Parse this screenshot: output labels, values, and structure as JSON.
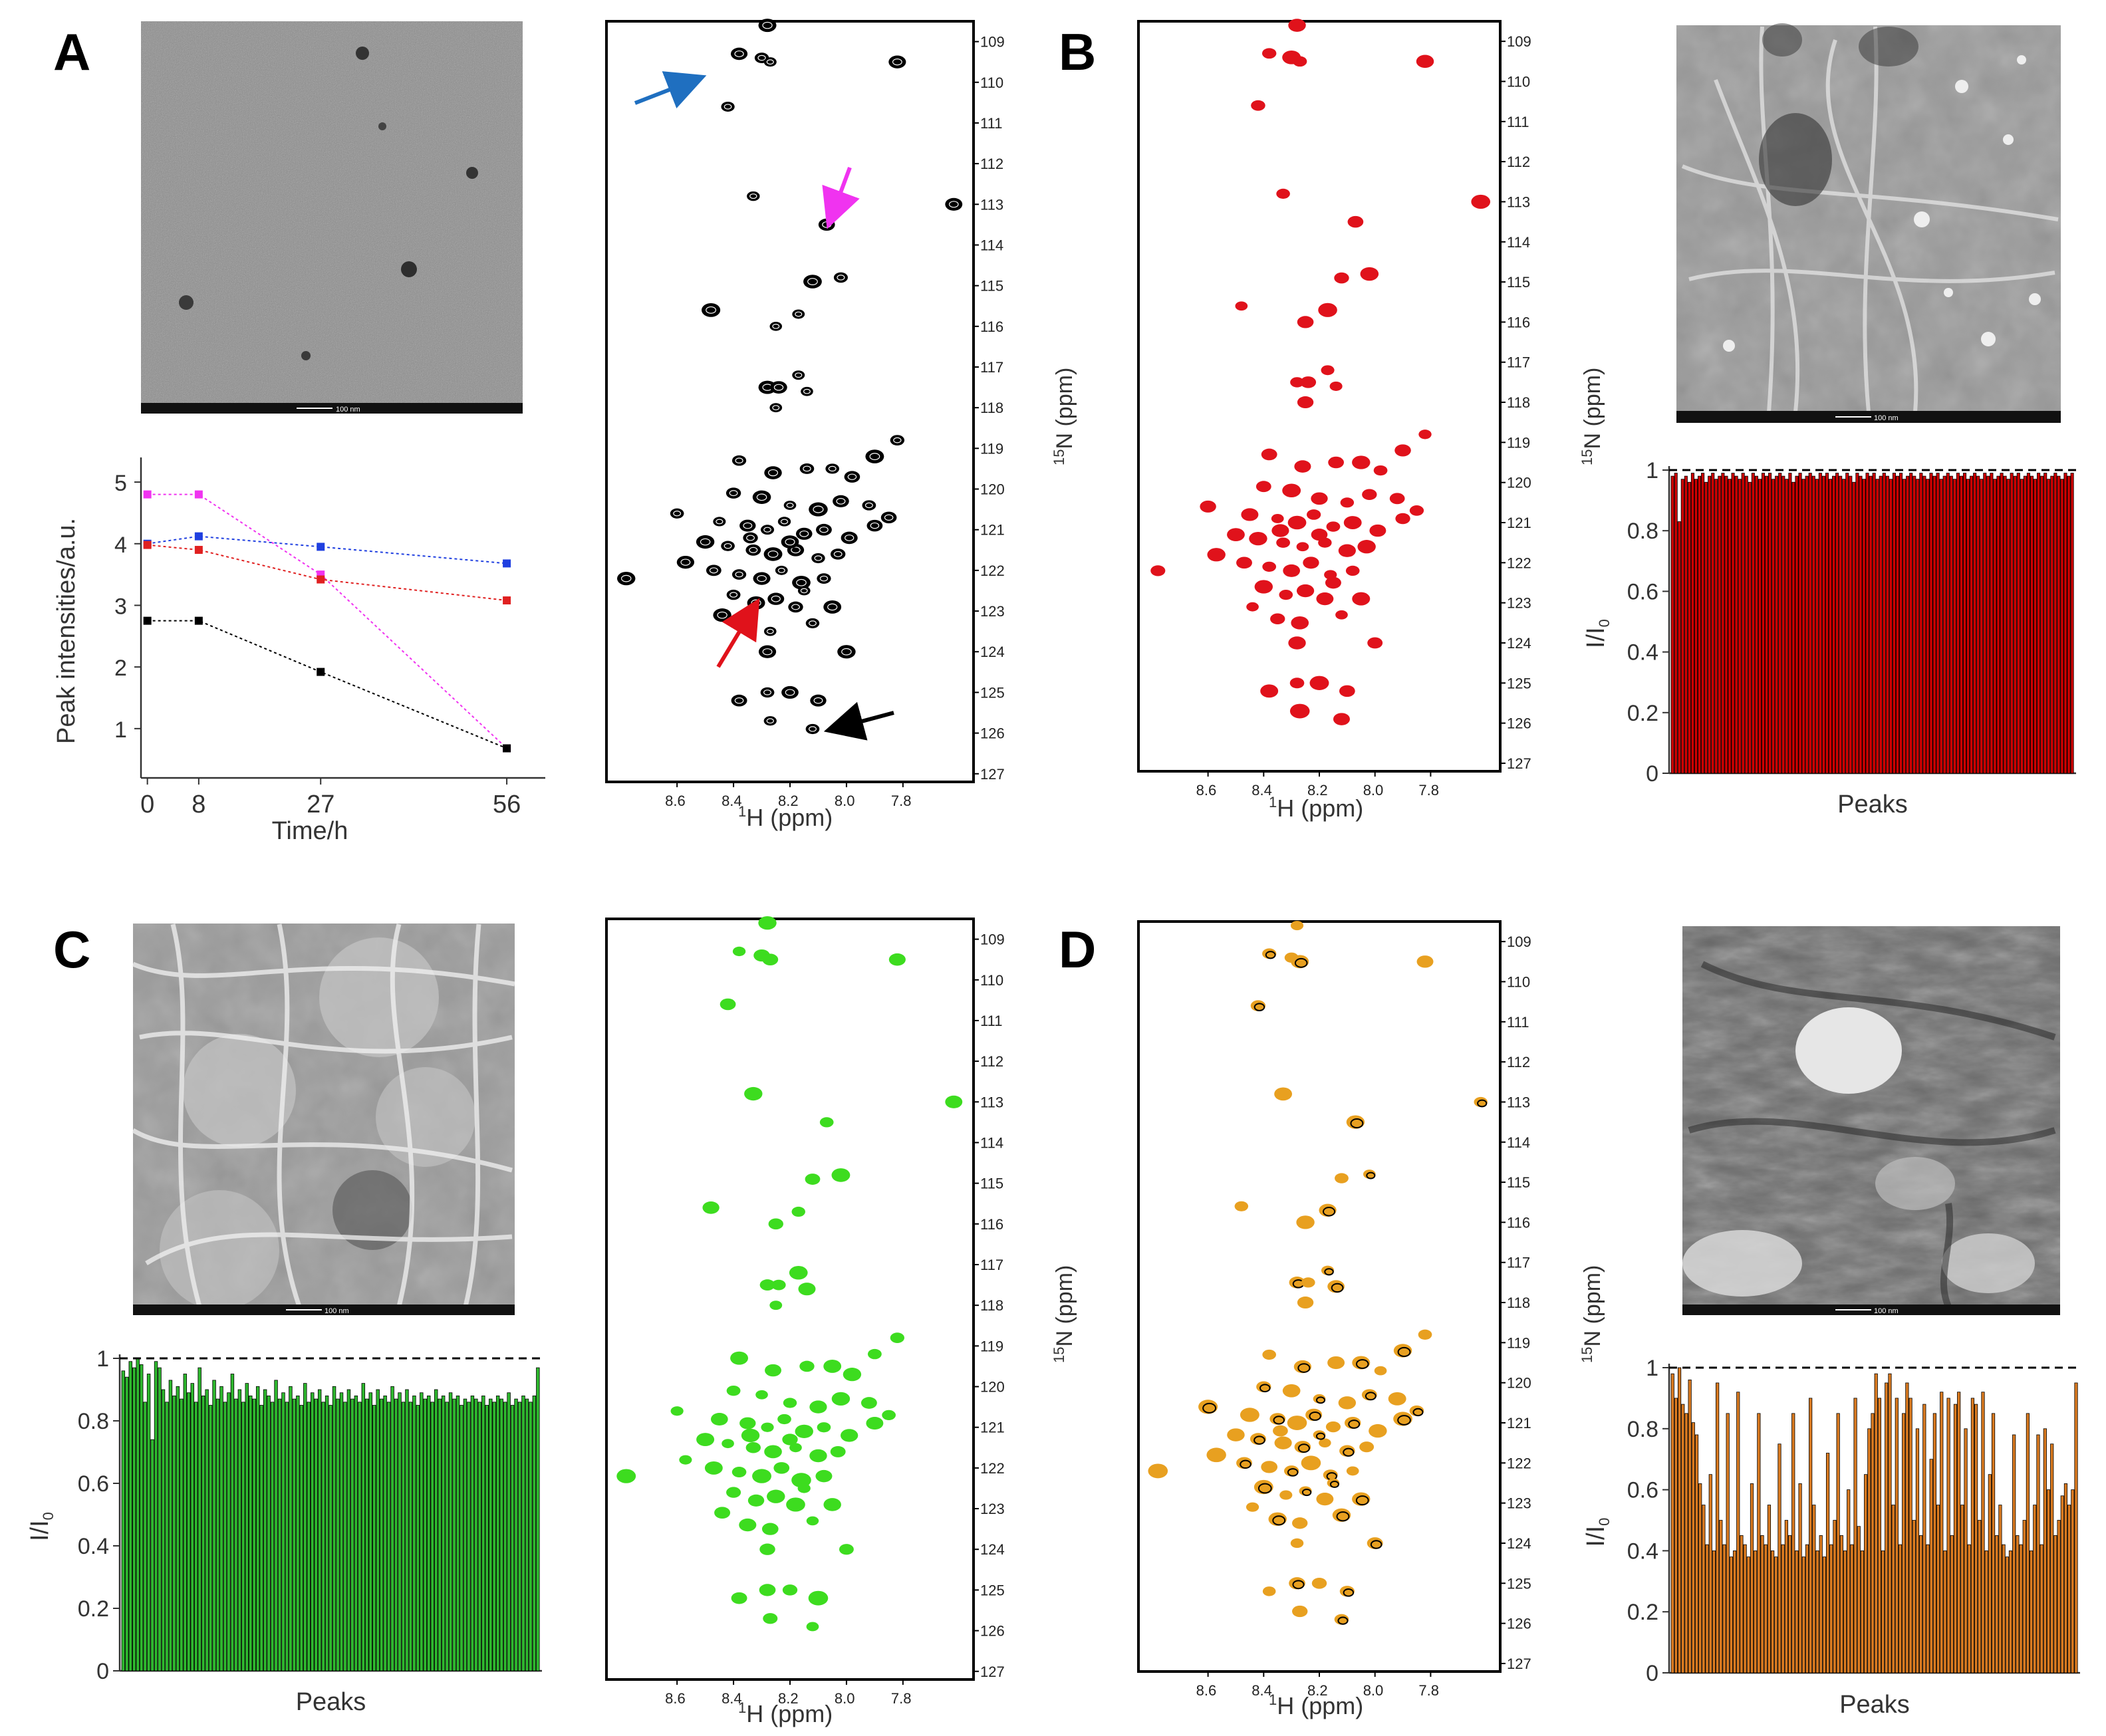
{
  "figure": {
    "panel_labels": [
      "A",
      "B",
      "C",
      "D"
    ],
    "em_scale_label": "100 nm",
    "colors": {
      "black": "#000000",
      "red": "#e0121b",
      "green": "#3ddc1f",
      "orange": "#e8a020",
      "blue": "#1f5fe0",
      "magenta": "#f033f0",
      "bar_red": "#cc0000",
      "bar_green": "#2eb82e",
      "bar_orange": "#d97a20"
    },
    "arrows": [
      "blue-arrow",
      "magenta-arrow",
      "red-arrow",
      "black-arrow"
    ]
  },
  "nmr": {
    "h_axis_label_sup": "1",
    "h_axis_label": "H (ppm)",
    "n_axis_label_sup": "15",
    "n_axis_label": "N (ppm)",
    "h_ticks": [
      "8.6",
      "8.4",
      "8.2",
      "8.0",
      "7.8"
    ],
    "n_ticks": [
      "109",
      "110",
      "111",
      "112",
      "113",
      "114",
      "115",
      "116",
      "117",
      "118",
      "119",
      "120",
      "121",
      "122",
      "123",
      "124",
      "125",
      "126",
      "127"
    ]
  },
  "chart_data": [
    {
      "id": "A-time-course",
      "type": "line",
      "title": "",
      "xlabel": "Time/h",
      "ylabel": "Peak intensities/a.u.",
      "x": [
        0,
        8,
        27,
        56
      ],
      "xticks": [
        "0",
        "8",
        "27",
        "56"
      ],
      "yticks": [
        "1",
        "2",
        "3",
        "4",
        "5"
      ],
      "xlim": [
        -1,
        62
      ],
      "ylim": [
        0.2,
        5.4
      ],
      "series": [
        {
          "name": "magenta",
          "color": "#f033f0",
          "values": [
            4.8,
            4.8,
            3.5,
            0.68
          ]
        },
        {
          "name": "blue",
          "color": "#1f3fe0",
          "values": [
            4.0,
            4.12,
            3.95,
            3.68
          ]
        },
        {
          "name": "red",
          "color": "#e02020",
          "values": [
            3.98,
            3.9,
            3.42,
            3.08
          ]
        },
        {
          "name": "black",
          "color": "#000000",
          "values": [
            2.75,
            2.75,
            1.92,
            0.68
          ]
        }
      ]
    },
    {
      "id": "B-intensity-ratio",
      "type": "bar",
      "xlabel": "Peaks",
      "ylabel": "I/I0",
      "ylabel_main": "I/I",
      "ylabel_sub": "0",
      "yticks": [
        "0",
        "0.2",
        "0.4",
        "0.6",
        "0.8",
        "1"
      ],
      "ylim": [
        0,
        1.0
      ],
      "reference_line": 1.0,
      "color": "#cc0000",
      "values": [
        0.98,
        0.99,
        0.83,
        0.97,
        0.98,
        0.96,
        0.99,
        0.97,
        0.98,
        0.99,
        0.96,
        0.98,
        0.99,
        0.97,
        0.98,
        0.99,
        0.98,
        0.97,
        0.99,
        0.98,
        0.97,
        0.99,
        0.98,
        0.96,
        0.99,
        0.98,
        0.97,
        0.99,
        0.98,
        0.99,
        0.97,
        0.98,
        0.99,
        0.98,
        0.97,
        0.99,
        0.96,
        0.98,
        0.99,
        0.97,
        0.98,
        0.99,
        0.98,
        0.97,
        0.99,
        0.98,
        0.99,
        0.97,
        0.98,
        0.99,
        0.98,
        0.97,
        0.99,
        0.98,
        0.96,
        0.99,
        0.98,
        0.97,
        0.99,
        0.98,
        0.99,
        0.97,
        0.98,
        0.99,
        0.98,
        0.97,
        0.99,
        0.98,
        0.99,
        0.97,
        0.98,
        0.99,
        0.98,
        0.97,
        0.99,
        0.98,
        0.97,
        0.99,
        0.98,
        0.99,
        0.97,
        0.98,
        0.99,
        0.98,
        0.97,
        0.99,
        0.98,
        0.99,
        0.97,
        0.98,
        0.99,
        0.98,
        0.97,
        0.99,
        0.98,
        0.99,
        0.97,
        0.98,
        0.99,
        0.98,
        0.97,
        0.99,
        0.98,
        0.99,
        0.97,
        0.98,
        0.99,
        0.98,
        0.97,
        0.99,
        0.98,
        0.99,
        0.97,
        0.98,
        0.99,
        0.98,
        0.97,
        0.99,
        0.98,
        0.99
      ]
    },
    {
      "id": "C-intensity-ratio",
      "type": "bar",
      "xlabel": "Peaks",
      "ylabel": "I/I0",
      "ylabel_main": "I/I",
      "ylabel_sub": "0",
      "yticks": [
        "0",
        "0.2",
        "0.4",
        "0.6",
        "0.8",
        "1"
      ],
      "ylim": [
        0,
        1.0
      ],
      "reference_line": 1.0,
      "color": "#2eb82e",
      "values": [
        0.96,
        0.94,
        0.99,
        0.97,
        1.0,
        0.98,
        0.86,
        0.95,
        0.74,
        0.99,
        0.97,
        0.9,
        0.86,
        0.93,
        0.88,
        0.91,
        0.87,
        0.95,
        0.89,
        0.92,
        0.86,
        0.97,
        0.88,
        0.9,
        0.85,
        0.93,
        0.87,
        0.91,
        0.86,
        0.89,
        0.95,
        0.87,
        0.9,
        0.86,
        0.92,
        0.88,
        0.87,
        0.91,
        0.85,
        0.9,
        0.88,
        0.86,
        0.93,
        0.87,
        0.89,
        0.86,
        0.91,
        0.87,
        0.88,
        0.85,
        0.92,
        0.86,
        0.89,
        0.87,
        0.9,
        0.86,
        0.88,
        0.85,
        0.91,
        0.87,
        0.89,
        0.86,
        0.9,
        0.87,
        0.88,
        0.86,
        0.92,
        0.87,
        0.89,
        0.85,
        0.9,
        0.87,
        0.88,
        0.86,
        0.91,
        0.87,
        0.89,
        0.86,
        0.9,
        0.86,
        0.88,
        0.85,
        0.89,
        0.87,
        0.88,
        0.86,
        0.9,
        0.87,
        0.88,
        0.86,
        0.89,
        0.87,
        0.88,
        0.85,
        0.87,
        0.86,
        0.88,
        0.87,
        0.86,
        0.88,
        0.85,
        0.87,
        0.86,
        0.88,
        0.87,
        0.86,
        0.89,
        0.85,
        0.87,
        0.86,
        0.88,
        0.87,
        0.86,
        0.88,
        0.97
      ]
    },
    {
      "id": "D-intensity-ratio",
      "type": "bar",
      "xlabel": "Peaks",
      "ylabel": "I/I0",
      "ylabel_main": "I/I",
      "ylabel_sub": "0",
      "yticks": [
        "0",
        "0.2",
        "0.4",
        "0.6",
        "0.8",
        "1"
      ],
      "ylim": [
        0,
        1.0
      ],
      "reference_line": 1.0,
      "color": "#d97a20",
      "values": [
        0.98,
        0.9,
        1.0,
        0.88,
        0.85,
        0.96,
        0.82,
        0.78,
        0.62,
        0.55,
        0.42,
        0.65,
        0.4,
        0.95,
        0.5,
        0.42,
        0.85,
        0.38,
        0.4,
        0.92,
        0.45,
        0.42,
        0.38,
        0.62,
        0.4,
        0.85,
        0.45,
        0.42,
        0.55,
        0.4,
        0.38,
        0.75,
        0.42,
        0.5,
        0.45,
        0.85,
        0.4,
        0.62,
        0.38,
        0.42,
        0.9,
        0.55,
        0.4,
        0.45,
        0.38,
        0.72,
        0.42,
        0.5,
        0.85,
        0.45,
        0.4,
        0.6,
        0.42,
        0.9,
        0.48,
        0.4,
        0.65,
        0.8,
        0.85,
        0.98,
        0.9,
        0.4,
        0.95,
        0.98,
        0.55,
        0.9,
        0.42,
        0.85,
        0.95,
        0.9,
        0.5,
        0.8,
        0.45,
        0.88,
        0.42,
        0.7,
        0.85,
        0.55,
        0.92,
        0.4,
        0.9,
        0.45,
        0.88,
        0.92,
        0.55,
        0.8,
        0.42,
        0.9,
        0.88,
        0.5,
        0.92,
        0.4,
        0.65,
        0.85,
        0.45,
        0.55,
        0.42,
        0.38,
        0.4,
        0.78,
        0.45,
        0.42,
        0.5,
        0.85,
        0.4,
        0.55,
        0.78,
        0.42,
        0.8,
        0.6,
        0.75,
        0.45,
        0.5,
        0.58,
        0.62,
        0.55,
        0.6,
        0.95
      ]
    }
  ]
}
